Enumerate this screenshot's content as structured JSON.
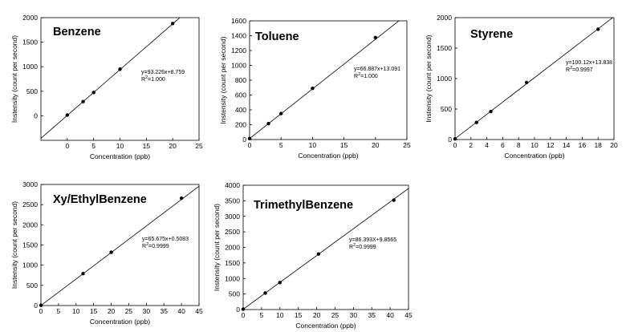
{
  "chart_data": [
    {
      "type": "scatter",
      "title": "Benzene",
      "xlabel": "Concentration (ppb)",
      "ylabel": "Instensity (count per second)",
      "xlim": [
        -5,
        25
      ],
      "ylim": [
        -500,
        2000
      ],
      "xticks": [
        0,
        5,
        10,
        15,
        20,
        25
      ],
      "yticks": [
        0,
        500,
        1000,
        1500,
        2000
      ],
      "points": [
        [
          0,
          15
        ],
        [
          3,
          290
        ],
        [
          5,
          475
        ],
        [
          10,
          950
        ],
        [
          20,
          1880
        ]
      ],
      "fit": {
        "slope": 93.226,
        "intercept": 8.759
      },
      "equation": "y=93.226x+8.759",
      "r2_label": "R",
      "r2_sup": "2",
      "r2_value": "=1.000",
      "grid": false
    },
    {
      "type": "scatter",
      "title": "Toluene",
      "xlabel": "Concentration (ppb)",
      "ylabel": "Instensity (count per second)",
      "xlim": [
        0,
        25
      ],
      "ylim": [
        0,
        1600
      ],
      "xticks": [
        0,
        5,
        10,
        15,
        20,
        25
      ],
      "yticks": [
        0,
        200,
        400,
        600,
        800,
        1000,
        1200,
        1400,
        1600
      ],
      "points": [
        [
          0,
          13
        ],
        [
          3,
          215
        ],
        [
          5,
          350
        ],
        [
          10,
          690
        ],
        [
          20,
          1375
        ]
      ],
      "fit": {
        "slope": 66.887,
        "intercept": 13.091
      },
      "equation": "y=66.887x+13.091",
      "r2_label": "R",
      "r2_sup": "2",
      "r2_value": "=1.000",
      "grid": false
    },
    {
      "type": "scatter",
      "title": "Styrene",
      "xlabel": "Concentration (ppb)",
      "ylabel": "Instensity (count per second)",
      "xlim": [
        0,
        20
      ],
      "ylim": [
        0,
        2000
      ],
      "xticks": [
        0,
        2,
        4,
        6,
        8,
        10,
        12,
        14,
        16,
        18,
        20
      ],
      "yticks": [
        0,
        500,
        1000,
        1500,
        2000
      ],
      "points": [
        [
          0,
          10
        ],
        [
          2.7,
          280
        ],
        [
          4.5,
          460
        ],
        [
          9,
          935
        ],
        [
          18,
          1810
        ]
      ],
      "fit": {
        "slope": 100.12,
        "intercept": 13.838
      },
      "equation": "y=100.12x+13.838",
      "r2_label": "R",
      "r2_sup": "2",
      "r2_value": "=0.9997",
      "grid": false
    },
    {
      "type": "scatter",
      "title": "Xy/EthylBenzene",
      "xlabel": "Concentration (ppb)",
      "ylabel": "Instensity (count per second)",
      "xlim": [
        0,
        45
      ],
      "ylim": [
        0,
        3000
      ],
      "xticks": [
        0,
        5,
        10,
        15,
        20,
        25,
        30,
        35,
        40,
        45
      ],
      "yticks": [
        0,
        500,
        1000,
        1500,
        2000,
        2500,
        3000
      ],
      "points": [
        [
          0,
          5
        ],
        [
          12,
          790
        ],
        [
          20,
          1320
        ],
        [
          40,
          2660
        ]
      ],
      "fit": {
        "slope": 65.675,
        "intercept": 0.5083
      },
      "equation": "y=65.675x+0.5083",
      "r2_label": "R",
      "r2_sup": "2",
      "r2_value": "=0.9999",
      "grid": false
    },
    {
      "type": "scatter",
      "title": "TrimethylBenzene",
      "xlabel": "Concentration (ppb)",
      "ylabel": "Instensity (count per second)",
      "xlim": [
        0,
        45
      ],
      "ylim": [
        0,
        4000
      ],
      "xticks": [
        0,
        5,
        10,
        15,
        20,
        25,
        30,
        35,
        40,
        45
      ],
      "yticks": [
        0,
        500,
        1000,
        1500,
        2000,
        2500,
        3000,
        3500,
        4000
      ],
      "points": [
        [
          0,
          10
        ],
        [
          6,
          530
        ],
        [
          10,
          870
        ],
        [
          20.5,
          1790
        ],
        [
          41,
          3520
        ]
      ],
      "fit": {
        "slope": 86.393,
        "intercept": 9.8565
      },
      "equation": "y=86.393X+9.8565",
      "r2_label": "R",
      "r2_sup": "2",
      "r2_value": "=0.9999",
      "grid": false
    }
  ]
}
